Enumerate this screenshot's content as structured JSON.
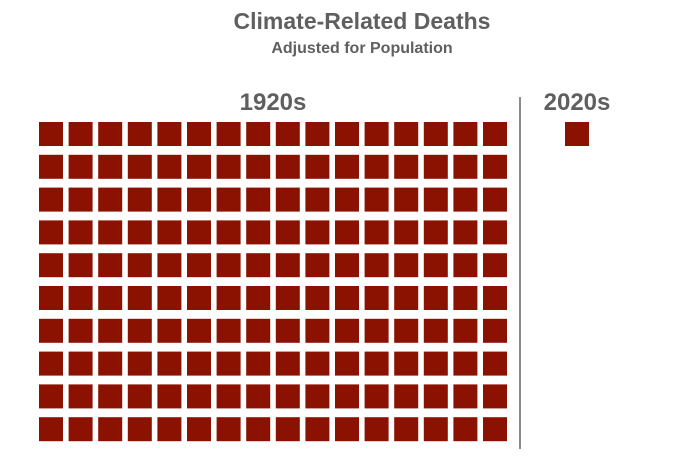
{
  "chart_data": {
    "type": "waffle",
    "title": "Climate-Related Deaths",
    "subtitle": "Adjusted for Population",
    "categories": [
      "1920s",
      "2020s"
    ],
    "values": [
      160,
      1
    ],
    "grid": {
      "rows": 10,
      "cols": 16
    },
    "colors": {
      "square": "#8b1100",
      "text": "#5f5f5f",
      "divider": "#8a8a8a"
    }
  }
}
